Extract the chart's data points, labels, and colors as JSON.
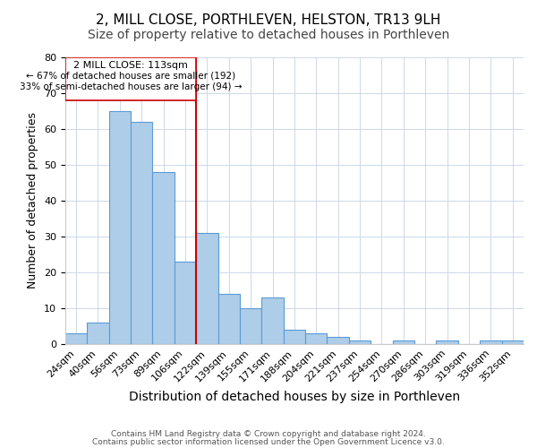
{
  "title": "2, MILL CLOSE, PORTHLEVEN, HELSTON, TR13 9LH",
  "subtitle": "Size of property relative to detached houses in Porthleven",
  "xlabel": "Distribution of detached houses by size in Porthleven",
  "ylabel": "Number of detached properties",
  "bar_labels": [
    "24sqm",
    "40sqm",
    "56sqm",
    "73sqm",
    "89sqm",
    "106sqm",
    "122sqm",
    "139sqm",
    "155sqm",
    "171sqm",
    "188sqm",
    "204sqm",
    "221sqm",
    "237sqm",
    "254sqm",
    "270sqm",
    "286sqm",
    "303sqm",
    "319sqm",
    "336sqm",
    "352sqm"
  ],
  "bar_values": [
    3,
    6,
    65,
    62,
    48,
    23,
    31,
    14,
    10,
    13,
    4,
    3,
    2,
    1,
    0,
    1,
    0,
    1,
    0,
    1,
    1
  ],
  "bar_color": "#aecde8",
  "bar_edge_color": "#5b9bd5",
  "reference_line_color": "#cc0000",
  "annotation_title": "2 MILL CLOSE: 113sqm",
  "annotation_line1": "← 67% of detached houses are smaller (192)",
  "annotation_line2": "33% of semi-detached houses are larger (94) →",
  "annotation_box_color": "#ffffff",
  "annotation_box_edge": "#cc0000",
  "ylim": [
    0,
    80
  ],
  "yticks": [
    0,
    10,
    20,
    30,
    40,
    50,
    60,
    70,
    80
  ],
  "footer1": "Contains HM Land Registry data © Crown copyright and database right 2024.",
  "footer2": "Contains public sector information licensed under the Open Government Licence v3.0.",
  "title_fontsize": 11,
  "subtitle_fontsize": 10,
  "tick_fontsize": 8,
  "ylabel_fontsize": 9,
  "xlabel_fontsize": 10
}
